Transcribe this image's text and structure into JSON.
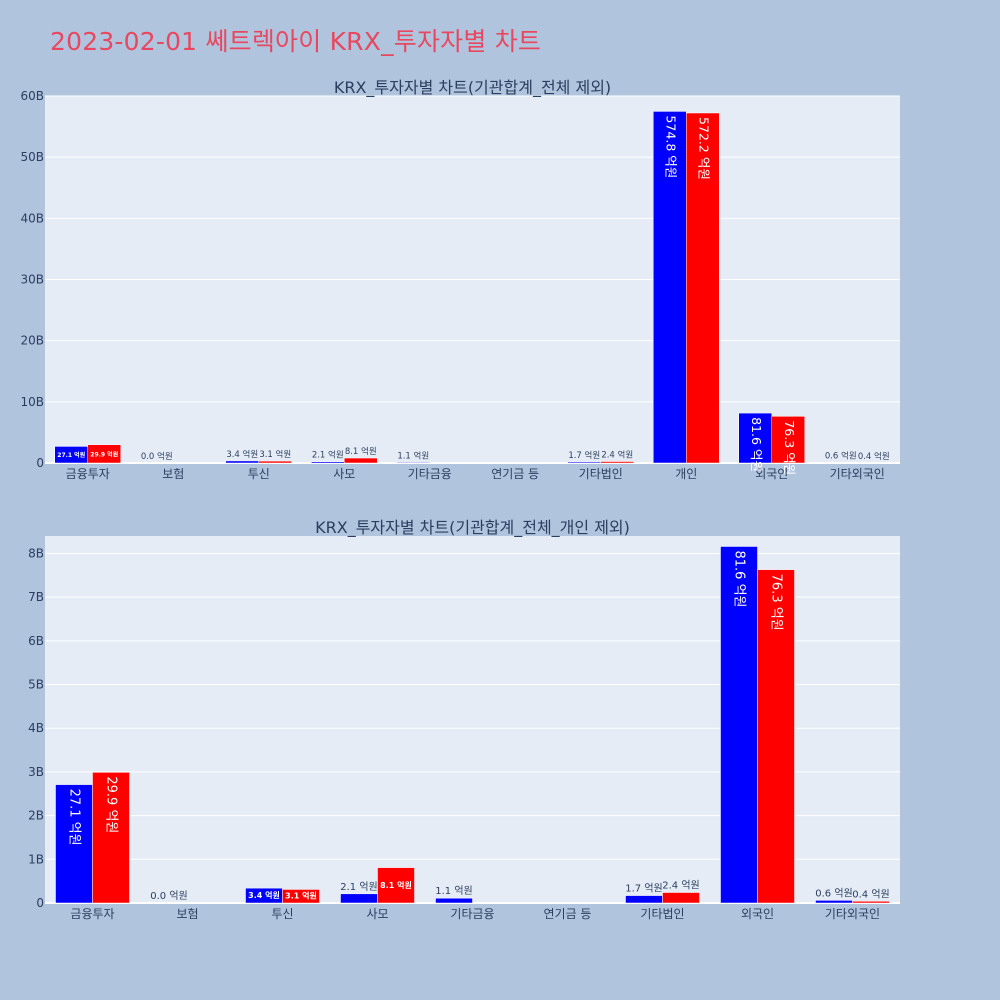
{
  "page_title": "2023-02-01 쎄트렉아이 KRX_투자자별 차트",
  "colors": {
    "buy": "#0000ff",
    "sell": "#ff0000",
    "plot_bg": "#e5ecf6",
    "page_bg": "#b0c4de",
    "title": "#e8485f"
  },
  "chart_data": [
    {
      "type": "bar",
      "title": "KRX_투자자별 차트(기관합계_전체 제외)",
      "categories": [
        "금융투자",
        "보험",
        "투신",
        "사모",
        "기타금융",
        "연기금 등",
        "기타법인",
        "개인",
        "외국인",
        "기타외국인"
      ],
      "ylim": [
        0,
        60000000000
      ],
      "yticks": [
        0,
        10000000000,
        20000000000,
        30000000000,
        40000000000,
        50000000000,
        60000000000
      ],
      "ytick_labels": [
        "0",
        "10B",
        "20B",
        "30B",
        "40B",
        "50B",
        "60B"
      ],
      "grid": true,
      "series": [
        {
          "color": "#0000ff",
          "values": [
            2710000000,
            0,
            340000000,
            210000000,
            110000000,
            0,
            170000000,
            57480000000,
            8160000000,
            60000000
          ],
          "labels": [
            "27.1 억원",
            "0.0 억원",
            "3.4 억원",
            "2.1 억원",
            "1.1 억원",
            "",
            "1.7 억원",
            "574.8 억원",
            "81.6 억원",
            "0.6 억원"
          ]
        },
        {
          "color": "#ff0000",
          "values": [
            2990000000,
            0,
            310000000,
            810000000,
            0,
            0,
            240000000,
            57220000000,
            7630000000,
            40000000
          ],
          "labels": [
            "29.9 억원",
            "",
            "3.1 억원",
            "8.1 억원",
            "",
            "",
            "2.4 억원",
            "572.2 억원",
            "76.3 억원",
            "0.4 억원"
          ]
        }
      ]
    },
    {
      "type": "bar",
      "title": "KRX_투자자별 차트(기관합계_전체_개인 제외)",
      "categories": [
        "금융투자",
        "보험",
        "투신",
        "사모",
        "기타금융",
        "연기금 등",
        "기타법인",
        "외국인",
        "기타외국인"
      ],
      "ylim": [
        0,
        8400000000
      ],
      "yticks": [
        0,
        1000000000,
        2000000000,
        3000000000,
        4000000000,
        5000000000,
        6000000000,
        7000000000,
        8000000000
      ],
      "ytick_labels": [
        "0",
        "1B",
        "2B",
        "3B",
        "4B",
        "5B",
        "6B",
        "7B",
        "8B"
      ],
      "grid": true,
      "series": [
        {
          "color": "#0000ff",
          "values": [
            2710000000,
            0,
            340000000,
            210000000,
            110000000,
            0,
            170000000,
            8160000000,
            60000000
          ],
          "labels": [
            "27.1 억원",
            "0.0 억원",
            "3.4 억원",
            "2.1 억원",
            "1.1 억원",
            "",
            "1.7 억원",
            "81.6 억원",
            "0.6 억원"
          ]
        },
        {
          "color": "#ff0000",
          "values": [
            2990000000,
            0,
            310000000,
            810000000,
            0,
            0,
            240000000,
            7630000000,
            40000000
          ],
          "labels": [
            "29.9 억원",
            "",
            "3.1 억원",
            "8.1 억원",
            "",
            "",
            "2.4 억원",
            "76.3 억원",
            "0.4 억원"
          ]
        }
      ]
    }
  ]
}
